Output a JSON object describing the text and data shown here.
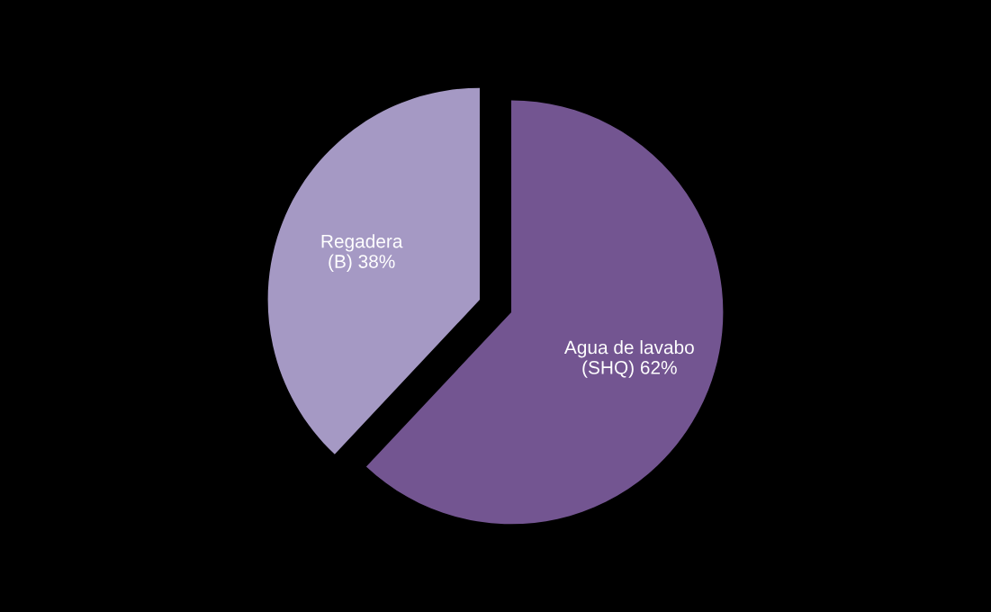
{
  "chart_data": {
    "type": "pie",
    "categories": [
      "Regadera\n(B)",
      "Agua de lavabo\n(SHQ)"
    ],
    "values": [
      38,
      62
    ],
    "value_labels": [
      "38%",
      "62%"
    ],
    "colors": [
      "#a599c4",
      "#735591"
    ]
  }
}
